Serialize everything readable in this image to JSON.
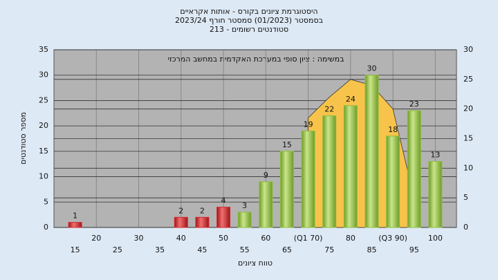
{
  "chart_data": {
    "type": "bar",
    "title": [
      "היסטוגרמת ציונים בקורס - אותות אקראיים",
      "בסמסטר  (01/2023)  סמסטר חורף  2023/24",
      "סטודנטים רשומים - 213"
    ],
    "subtitle": "במשימה : ציון סופי במערכת האקדמית במחשב המרכזי",
    "x_label": "טווח ציונים",
    "y_label": "מספר סטודנטים",
    "categories": [
      "15",
      "20",
      "25",
      "30",
      "35",
      "40",
      "45",
      "50",
      "55",
      "60",
      "65",
      "(Q1 70)",
      "75",
      "80",
      "85",
      "(Q3 90)",
      "95",
      "100"
    ],
    "values": [
      1,
      0,
      0,
      0,
      0,
      2,
      2,
      4,
      3,
      9,
      15,
      19,
      22,
      24,
      30,
      18,
      23,
      13
    ],
    "colors": [
      "#d8282c",
      "#d8282c",
      "#d8282c",
      "#d8282c",
      "#d8282c",
      "#d8282c",
      "#d8282c",
      "#d8282c",
      "#8cbf3c",
      "#8cbf3c",
      "#8cbf3c",
      "#8cbf3c",
      "#8cbf3c",
      "#8cbf3c",
      "#8cbf3c",
      "#8cbf3c",
      "#8cbf3c",
      "#8cbf3c"
    ],
    "ylim": [
      0,
      35
    ],
    "yticks": [
      0,
      5,
      10,
      15,
      20,
      25,
      30,
      35
    ],
    "y2lim": [
      0,
      30
    ],
    "y2ticks": [
      0,
      5,
      10,
      15,
      20,
      25,
      30
    ],
    "area": {
      "axis": "y2",
      "color": "#f7c34a",
      "start": 11,
      "values": [
        18.5,
        22,
        25,
        24,
        20,
        5
      ]
    },
    "grid": true
  }
}
